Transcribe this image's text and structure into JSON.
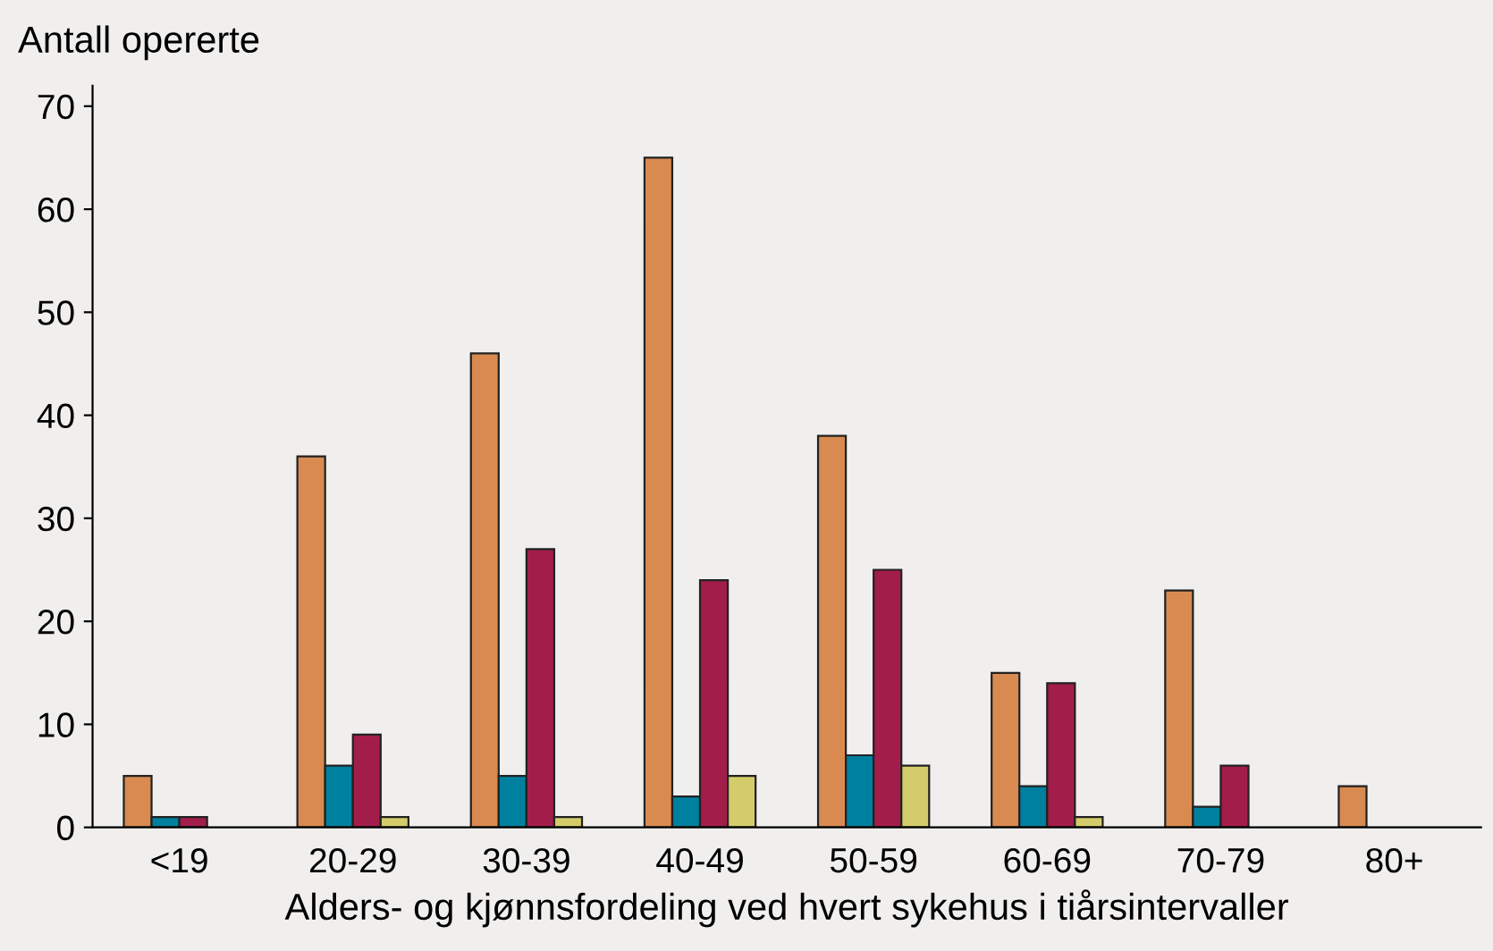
{
  "chart_data": {
    "type": "bar",
    "ylabel": "Antall opererte",
    "xlabel": "Alders- og kjønnsfordeling ved hvert sykehus i tiårsintervaller",
    "categories": [
      "<19",
      "20-29",
      "30-39",
      "40-49",
      "50-59",
      "60-69",
      "70-79",
      "80+"
    ],
    "series": [
      {
        "color": "#d98a50",
        "values": [
          5,
          36,
          46,
          65,
          38,
          15,
          23,
          4
        ]
      },
      {
        "color": "#00809f",
        "values": [
          1,
          6,
          5,
          3,
          7,
          4,
          2,
          null
        ]
      },
      {
        "color": "#a31d4a",
        "values": [
          1,
          9,
          27,
          24,
          25,
          14,
          6,
          null
        ]
      },
      {
        "color": "#d4cc6a",
        "values": [
          null,
          1,
          1,
          5,
          6,
          1,
          null,
          null
        ]
      }
    ],
    "ylim": [
      0,
      72
    ],
    "yticks": [
      0,
      10,
      20,
      30,
      40,
      50,
      60,
      70
    ],
    "grid": false,
    "legend": false
  }
}
